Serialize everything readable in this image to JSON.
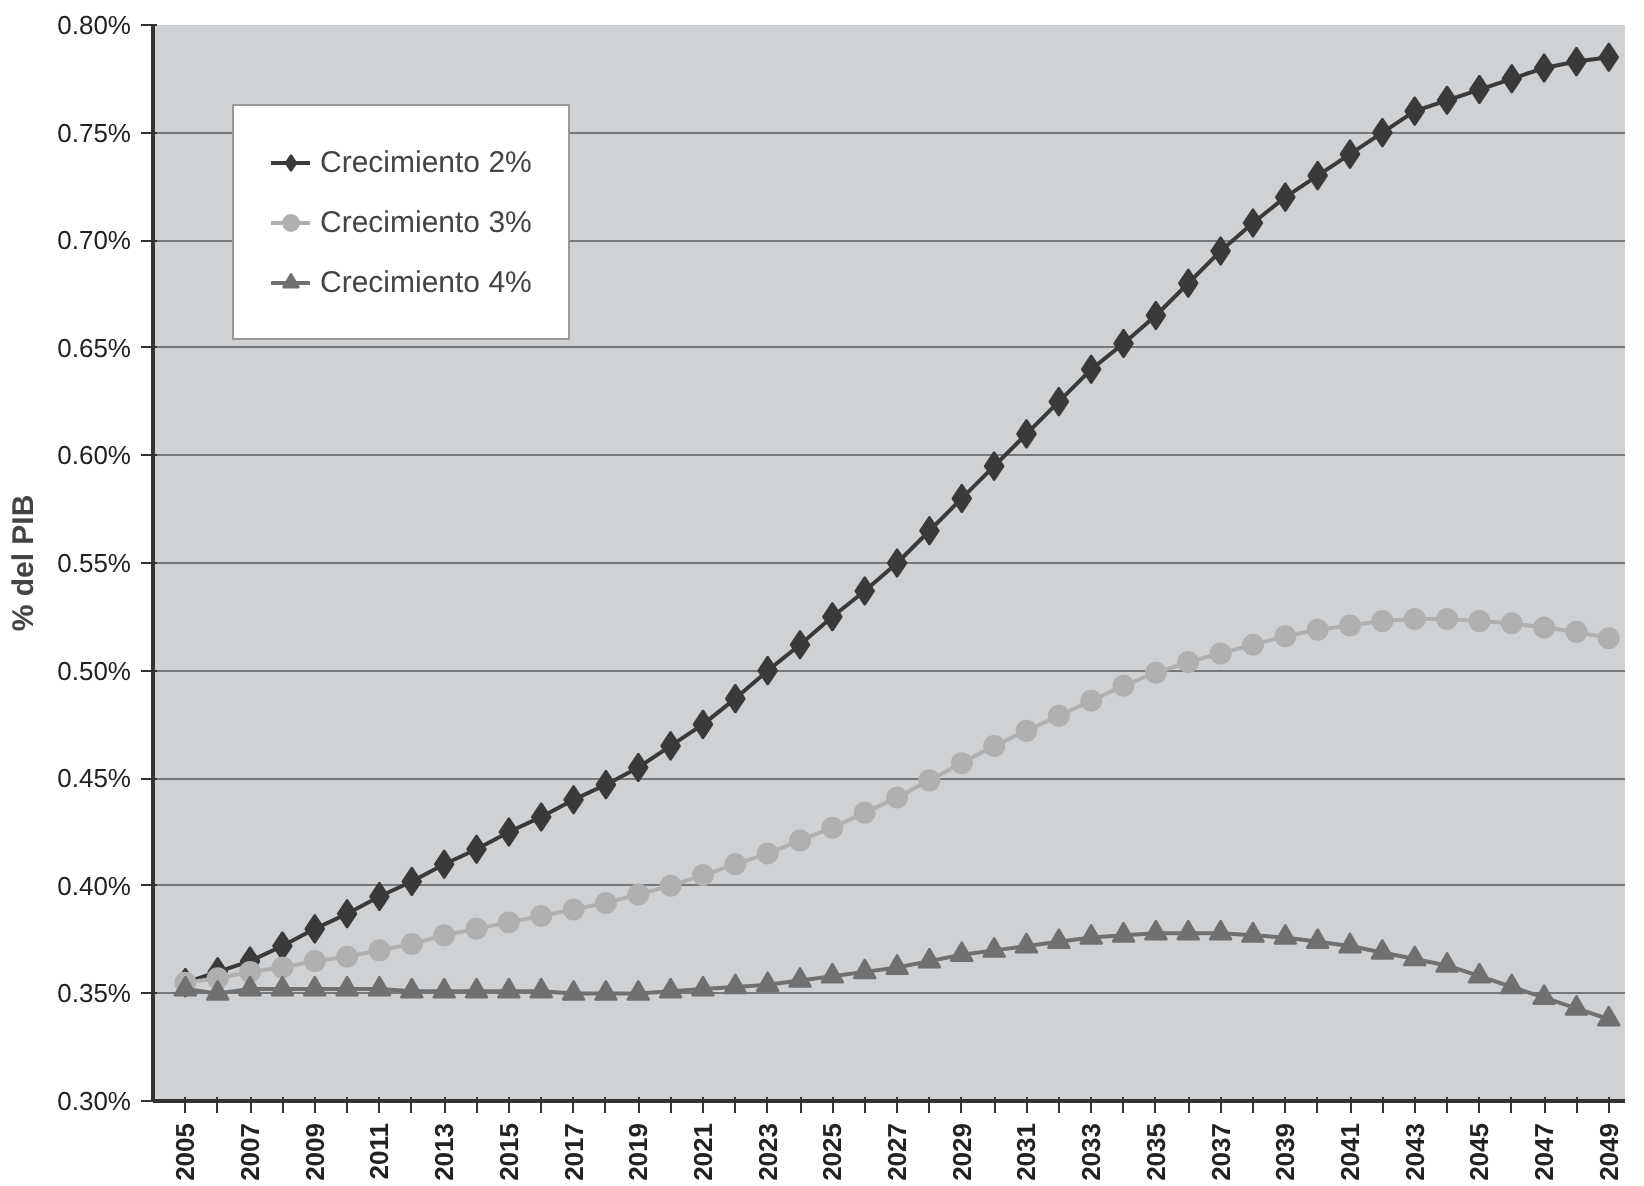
{
  "chart_data": {
    "type": "line",
    "ylabel": "% del PIB",
    "x": [
      2005,
      2006,
      2007,
      2008,
      2009,
      2010,
      2011,
      2012,
      2013,
      2014,
      2015,
      2016,
      2017,
      2018,
      2019,
      2020,
      2021,
      2022,
      2023,
      2024,
      2025,
      2026,
      2027,
      2028,
      2029,
      2030,
      2031,
      2032,
      2033,
      2034,
      2035,
      2036,
      2037,
      2038,
      2039,
      2040,
      2041,
      2042,
      2043,
      2044,
      2045,
      2046,
      2047,
      2048,
      2049
    ],
    "series": [
      {
        "name": "Crecimiento 2%",
        "color": "#3a3a3a",
        "marker": "diamond",
        "values": [
          0.355,
          0.36,
          0.365,
          0.372,
          0.38,
          0.387,
          0.395,
          0.402,
          0.41,
          0.417,
          0.425,
          0.432,
          0.44,
          0.447,
          0.455,
          0.465,
          0.475,
          0.487,
          0.5,
          0.512,
          0.525,
          0.537,
          0.55,
          0.565,
          0.58,
          0.595,
          0.61,
          0.625,
          0.64,
          0.652,
          0.665,
          0.68,
          0.695,
          0.708,
          0.72,
          0.73,
          0.74,
          0.75,
          0.76,
          0.765,
          0.77,
          0.775,
          0.78,
          0.783,
          0.785
        ]
      },
      {
        "name": "Crecimiento 3%",
        "color": "#b0b0b0",
        "marker": "circle",
        "values": [
          0.355,
          0.357,
          0.36,
          0.362,
          0.365,
          0.367,
          0.37,
          0.373,
          0.377,
          0.38,
          0.383,
          0.386,
          0.389,
          0.392,
          0.396,
          0.4,
          0.405,
          0.41,
          0.415,
          0.421,
          0.427,
          0.434,
          0.441,
          0.449,
          0.457,
          0.465,
          0.472,
          0.479,
          0.486,
          0.493,
          0.499,
          0.504,
          0.508,
          0.512,
          0.516,
          0.519,
          0.521,
          0.523,
          0.524,
          0.524,
          0.523,
          0.522,
          0.52,
          0.518,
          0.515
        ]
      },
      {
        "name": "Crecimiento 4%",
        "color": "#707070",
        "marker": "triangle",
        "values": [
          0.352,
          0.35,
          0.352,
          0.352,
          0.352,
          0.352,
          0.352,
          0.351,
          0.351,
          0.351,
          0.351,
          0.351,
          0.35,
          0.35,
          0.35,
          0.351,
          0.352,
          0.353,
          0.354,
          0.356,
          0.358,
          0.36,
          0.362,
          0.365,
          0.368,
          0.37,
          0.372,
          0.374,
          0.376,
          0.377,
          0.378,
          0.378,
          0.378,
          0.377,
          0.376,
          0.374,
          0.372,
          0.369,
          0.366,
          0.363,
          0.358,
          0.353,
          0.348,
          0.343,
          0.338
        ]
      }
    ],
    "xlim": [
      2004,
      2049.5
    ],
    "xticks": [
      2005,
      {
        "value": 2006,
        "label": null
      },
      2007,
      {
        "value": 2008,
        "label": null
      },
      2009,
      {
        "value": 2010,
        "label": null
      },
      2011,
      {
        "value": 2012,
        "label": null
      },
      2013,
      {
        "value": 2014,
        "label": null
      },
      2015,
      {
        "value": 2016,
        "label": null
      },
      2017,
      {
        "value": 2018,
        "label": null
      },
      2019,
      {
        "value": 2020,
        "label": null
      },
      2021,
      {
        "value": 2022,
        "label": null
      },
      2023,
      {
        "value": 2024,
        "label": null
      },
      2025,
      {
        "value": 2026,
        "label": null
      },
      2027,
      {
        "value": 2028,
        "label": null
      },
      2029,
      {
        "value": 2030,
        "label": null
      },
      2031,
      {
        "value": 2032,
        "label": null
      },
      2033,
      {
        "value": 2034,
        "label": null
      },
      2035,
      {
        "value": 2036,
        "label": null
      },
      2037,
      {
        "value": 2038,
        "label": null
      },
      2039,
      {
        "value": 2040,
        "label": null
      },
      2041,
      {
        "value": 2042,
        "label": null
      },
      2043,
      {
        "value": 2044,
        "label": null
      },
      2045,
      {
        "value": 2046,
        "label": null
      },
      2047,
      {
        "value": 2048,
        "label": null
      },
      2049
    ],
    "ylim": [
      0.3,
      0.8
    ],
    "yticks": [
      {
        "value": 0.3,
        "label": "0.30%"
      },
      {
        "value": 0.35,
        "label": "0.35%"
      },
      {
        "value": 0.4,
        "label": "0.40%"
      },
      {
        "value": 0.45,
        "label": "0.45%"
      },
      {
        "value": 0.5,
        "label": "0.50%"
      },
      {
        "value": 0.55,
        "label": "0.55%"
      },
      {
        "value": 0.6,
        "label": "0.60%"
      },
      {
        "value": 0.65,
        "label": "0.65%"
      },
      {
        "value": 0.7,
        "label": "0.70%"
      },
      {
        "value": 0.75,
        "label": "0.75%"
      },
      {
        "value": 0.8,
        "label": "0.80%"
      }
    ],
    "grid": "y",
    "legend": "top left"
  }
}
